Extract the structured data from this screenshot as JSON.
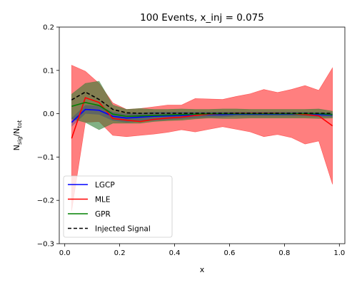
{
  "chart_data": {
    "type": "line",
    "title": "100 Events, x_inj = 0.075",
    "xlabel": "x",
    "ylabel_main": "N",
    "ylabel_num_sub": "sig",
    "ylabel_den": "N",
    "ylabel_den_sub": "tot",
    "xlim": [
      -0.02,
      1.02
    ],
    "ylim": [
      -0.3,
      0.2
    ],
    "xticks": [
      0.0,
      0.2,
      0.4,
      0.6,
      0.8,
      1.0
    ],
    "xtick_labels": [
      "0.0",
      "0.2",
      "0.4",
      "0.6",
      "0.8",
      "1.0"
    ],
    "yticks": [
      -0.3,
      -0.2,
      -0.1,
      0.0,
      0.1,
      0.2
    ],
    "ytick_labels": [
      "−0.3",
      "−0.2",
      "−0.1",
      "0.0",
      "0.1",
      "0.2"
    ],
    "grid": false,
    "legend_position": "lower-left",
    "x": [
      0.025,
      0.075,
      0.125,
      0.175,
      0.225,
      0.275,
      0.325,
      0.375,
      0.425,
      0.475,
      0.525,
      0.575,
      0.625,
      0.675,
      0.725,
      0.775,
      0.825,
      0.875,
      0.925,
      0.975
    ],
    "series": [
      {
        "name": "LGCP",
        "color": "#0000ff",
        "style": "solid",
        "values": [
          -0.02,
          0.01,
          0.008,
          -0.006,
          -0.01,
          -0.008,
          -0.006,
          -0.005,
          -0.004,
          -0.003,
          -0.002,
          -0.002,
          -0.001,
          -0.001,
          -0.001,
          -0.001,
          -0.001,
          -0.001,
          -0.002,
          -0.003
        ],
        "band_upper": [
          -0.01,
          0.02,
          0.018,
          0.004,
          0.0,
          0.002,
          0.004,
          0.004,
          0.004,
          0.004,
          0.004,
          0.004,
          0.004,
          0.004,
          0.004,
          0.004,
          0.004,
          0.004,
          0.003,
          0.002
        ],
        "band_lower": [
          -0.03,
          0.0,
          -0.002,
          -0.016,
          -0.02,
          -0.018,
          -0.016,
          -0.014,
          -0.012,
          -0.01,
          -0.008,
          -0.008,
          -0.006,
          -0.006,
          -0.006,
          -0.006,
          -0.006,
          -0.006,
          -0.007,
          -0.008
        ]
      },
      {
        "name": "MLE",
        "color": "#ff0000",
        "style": "solid",
        "band_color": "#ff0000",
        "values": [
          -0.057,
          0.037,
          0.026,
          -0.011,
          -0.015,
          -0.018,
          -0.013,
          -0.01,
          -0.008,
          -0.004,
          -0.001,
          0.0,
          0.001,
          0.001,
          0.001,
          0.001,
          0.0,
          -0.002,
          -0.005,
          -0.028
        ],
        "band_upper": [
          0.112,
          0.098,
          0.07,
          0.025,
          0.01,
          0.012,
          0.016,
          0.02,
          0.02,
          0.035,
          0.034,
          0.033,
          0.04,
          0.046,
          0.056,
          0.049,
          0.056,
          0.065,
          0.054,
          0.106
        ],
        "band_lower": [
          -0.225,
          -0.02,
          -0.018,
          -0.05,
          -0.053,
          -0.05,
          -0.047,
          -0.043,
          -0.037,
          -0.042,
          -0.036,
          -0.03,
          -0.036,
          -0.042,
          -0.053,
          -0.048,
          -0.055,
          -0.07,
          -0.063,
          -0.163
        ]
      },
      {
        "name": "GPR",
        "color": "#008000",
        "style": "solid",
        "band_color": "#2e7d32",
        "values": [
          0.017,
          0.026,
          0.019,
          -0.001,
          -0.006,
          -0.005,
          -0.004,
          -0.003,
          -0.002,
          -0.001,
          0.0,
          0.0,
          0.0,
          0.0,
          0.0,
          0.0,
          0.0,
          0.0,
          0.0,
          -0.002
        ],
        "band_upper": [
          0.045,
          0.07,
          0.075,
          0.02,
          0.01,
          0.012,
          0.01,
          0.01,
          0.011,
          0.01,
          0.01,
          0.011,
          0.011,
          0.01,
          0.01,
          0.01,
          0.01,
          0.01,
          0.011,
          0.006
        ],
        "band_lower": [
          -0.012,
          -0.02,
          -0.037,
          -0.022,
          -0.022,
          -0.022,
          -0.018,
          -0.016,
          -0.015,
          -0.012,
          -0.01,
          -0.011,
          -0.011,
          -0.01,
          -0.01,
          -0.01,
          -0.01,
          -0.01,
          -0.011,
          -0.01
        ]
      },
      {
        "name": "Injected Signal",
        "color": "#000000",
        "style": "dashed",
        "values": [
          0.032,
          0.05,
          0.033,
          0.01,
          0.002,
          0.001,
          0.001,
          0.001,
          0.001,
          0.001,
          0.001,
          0.001,
          0.001,
          0.001,
          0.001,
          0.001,
          0.001,
          0.001,
          0.001,
          0.001
        ]
      }
    ]
  }
}
